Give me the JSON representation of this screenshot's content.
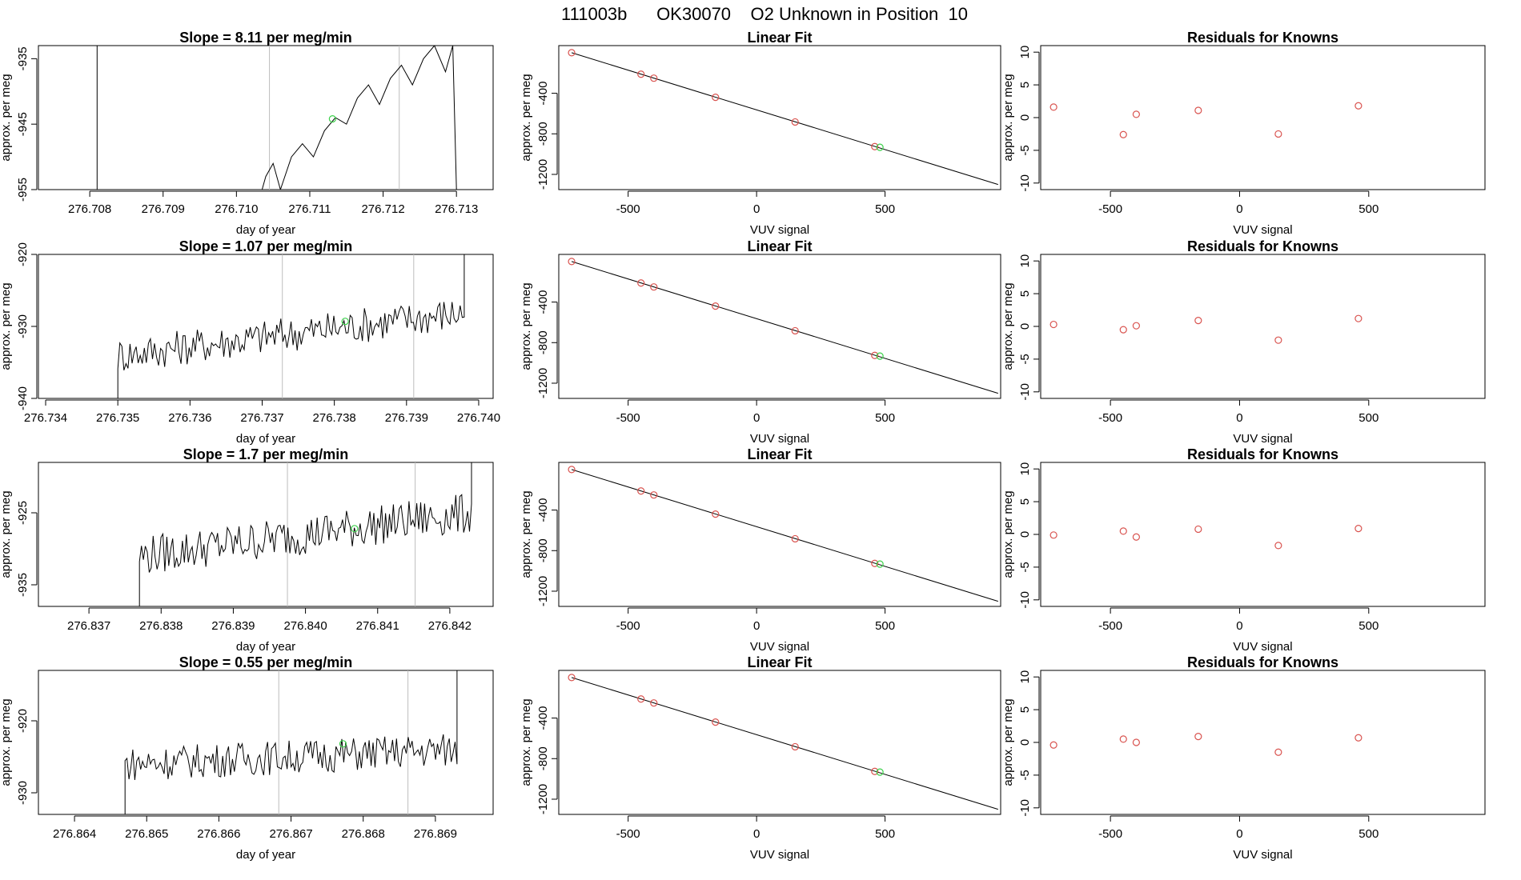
{
  "page_title": "111003b      OK30070    O2 Unknown in Position  10",
  "colors": {
    "known": "#d9534f",
    "unknown": "#3bd14a",
    "line": "#000000",
    "vline": "#bdbdbd"
  },
  "chart_data": [
    {
      "type": "line",
      "title": "Slope =  8.11  per meg/min",
      "xlabel": "day of year",
      "ylabel": "approx. per meg",
      "xlim": [
        276.7073,
        276.7135
      ],
      "ylim": [
        -955,
        -933
      ],
      "xticks": [
        "276.708",
        "276.709",
        "276.710",
        "276.711",
        "276.712",
        "276.713"
      ],
      "yticks": [
        "-935",
        "-945",
        "-955"
      ],
      "start": 276.7104,
      "end": 276.713,
      "series_points": [
        [
          276.7081,
          -933
        ],
        [
          276.7081,
          -955
        ],
        [
          276.71035,
          -955
        ],
        [
          276.7104,
          -953
        ],
        [
          276.7105,
          -951
        ],
        [
          276.7106,
          -955
        ],
        [
          276.71075,
          -950
        ],
        [
          276.7109,
          -948
        ],
        [
          276.71105,
          -950
        ],
        [
          276.7112,
          -946
        ],
        [
          276.71135,
          -944
        ],
        [
          276.7115,
          -945
        ],
        [
          276.71165,
          -941
        ],
        [
          276.7118,
          -939
        ],
        [
          276.71195,
          -942
        ],
        [
          276.7121,
          -938
        ],
        [
          276.71225,
          -936
        ],
        [
          276.7124,
          -939
        ],
        [
          276.71255,
          -935
        ],
        [
          276.7127,
          -933
        ],
        [
          276.71285,
          -937
        ],
        [
          276.71295,
          -933
        ],
        [
          276.713,
          -955
        ]
      ],
      "vlines": [
        276.71045,
        276.71222
      ],
      "marker": [
        276.71131,
        -944.2
      ]
    },
    {
      "type": "line",
      "title": "Slope =  1.07  per meg/min",
      "xlabel": "day of year",
      "ylabel": "approx. per meg",
      "xlim": [
        276.7339,
        276.7402
      ],
      "ylim": [
        -940,
        -920
      ],
      "xticks": [
        "276.734",
        "276.735",
        "276.736",
        "276.737",
        "276.738",
        "276.739",
        "276.740"
      ],
      "yticks": [
        "-920",
        "-930",
        "-940"
      ],
      "start": 276.735,
      "end": 276.7398,
      "base_level": -934,
      "end_level": -928,
      "noise": 2.5,
      "vlines": [
        276.73728,
        276.7391
      ],
      "marker": [
        276.73815,
        -929.3
      ]
    },
    {
      "type": "line",
      "title": "Slope =  1.7  per meg/min",
      "xlabel": "day of year",
      "ylabel": "approx. per meg",
      "xlim": [
        276.8363,
        276.8426
      ],
      "ylim": [
        -938,
        -918
      ],
      "xticks": [
        "276.837",
        "276.838",
        "276.839",
        "276.840",
        "276.841",
        "276.842"
      ],
      "yticks": [
        "-925",
        "-935"
      ],
      "start": 276.8377,
      "end": 276.8423,
      "base_level": -931,
      "end_level": -925,
      "noise": 2.8,
      "vlines": [
        276.83975,
        276.84152
      ],
      "marker": [
        276.84068,
        -927.2
      ]
    },
    {
      "type": "line",
      "title": "Slope =  0.55  per meg/min",
      "xlabel": "day of year",
      "ylabel": "approx. per meg",
      "xlim": [
        276.8635,
        276.8698
      ],
      "ylim": [
        -933,
        -913
      ],
      "xticks": [
        "276.864",
        "276.865",
        "276.866",
        "276.867",
        "276.868",
        "276.869"
      ],
      "yticks": [
        "-920",
        "-930"
      ],
      "start": 276.8647,
      "end": 276.8693,
      "base_level": -926,
      "end_level": -924,
      "noise": 2.4,
      "vlines": [
        276.86683,
        276.86862
      ],
      "marker": [
        276.86772,
        -923.2
      ]
    },
    {
      "type": "scatter",
      "title": "Linear Fit",
      "xlabel": "VUV signal",
      "ylabel": "approx. per meg",
      "xlim": [
        -770,
        950
      ],
      "ylim": [
        -1350,
        70
      ],
      "xticks": [
        "-500",
        "0",
        "500"
      ],
      "yticks": [
        "-400",
        "-800",
        "-1200"
      ],
      "line": [
        [
          -720,
          0
        ],
        [
          940,
          -1300
        ]
      ],
      "knowns": [
        [
          -720,
          0
        ],
        [
          -450,
          -212
        ],
        [
          -400,
          -251
        ],
        [
          -160,
          -440
        ],
        [
          150,
          -683
        ],
        [
          460,
          -926
        ]
      ],
      "unknowns": [
        [
          480,
          -933
        ]
      ],
      "repeat_rows": 4
    },
    {
      "type": "scatter",
      "title": "Residuals for Knowns",
      "xlabel": "VUV signal",
      "ylabel": "approx. per meg",
      "xlim": [
        -770,
        950
      ],
      "ylim": [
        -11,
        11
      ],
      "xticks": [
        "-500",
        "0",
        "500"
      ],
      "yticks": [
        "10",
        "5",
        "0",
        "-5",
        "-10"
      ],
      "rows": [
        [
          [
            -720,
            1.6
          ],
          [
            -450,
            -2.6
          ],
          [
            -400,
            0.5
          ],
          [
            -160,
            1.1
          ],
          [
            150,
            -2.5
          ],
          [
            460,
            1.8
          ]
        ],
        [
          [
            -720,
            0.3
          ],
          [
            -450,
            -0.5
          ],
          [
            -400,
            0.1
          ],
          [
            -160,
            0.9
          ],
          [
            150,
            -2.1
          ],
          [
            460,
            1.2
          ]
        ],
        [
          [
            -720,
            -0.1
          ],
          [
            -450,
            0.5
          ],
          [
            -400,
            -0.4
          ],
          [
            -160,
            0.8
          ],
          [
            150,
            -1.7
          ],
          [
            460,
            0.9
          ]
        ],
        [
          [
            -720,
            -0.4
          ],
          [
            -450,
            0.5
          ],
          [
            -400,
            0.0
          ],
          [
            -160,
            0.9
          ],
          [
            150,
            -1.5
          ],
          [
            460,
            0.7
          ]
        ]
      ]
    }
  ]
}
